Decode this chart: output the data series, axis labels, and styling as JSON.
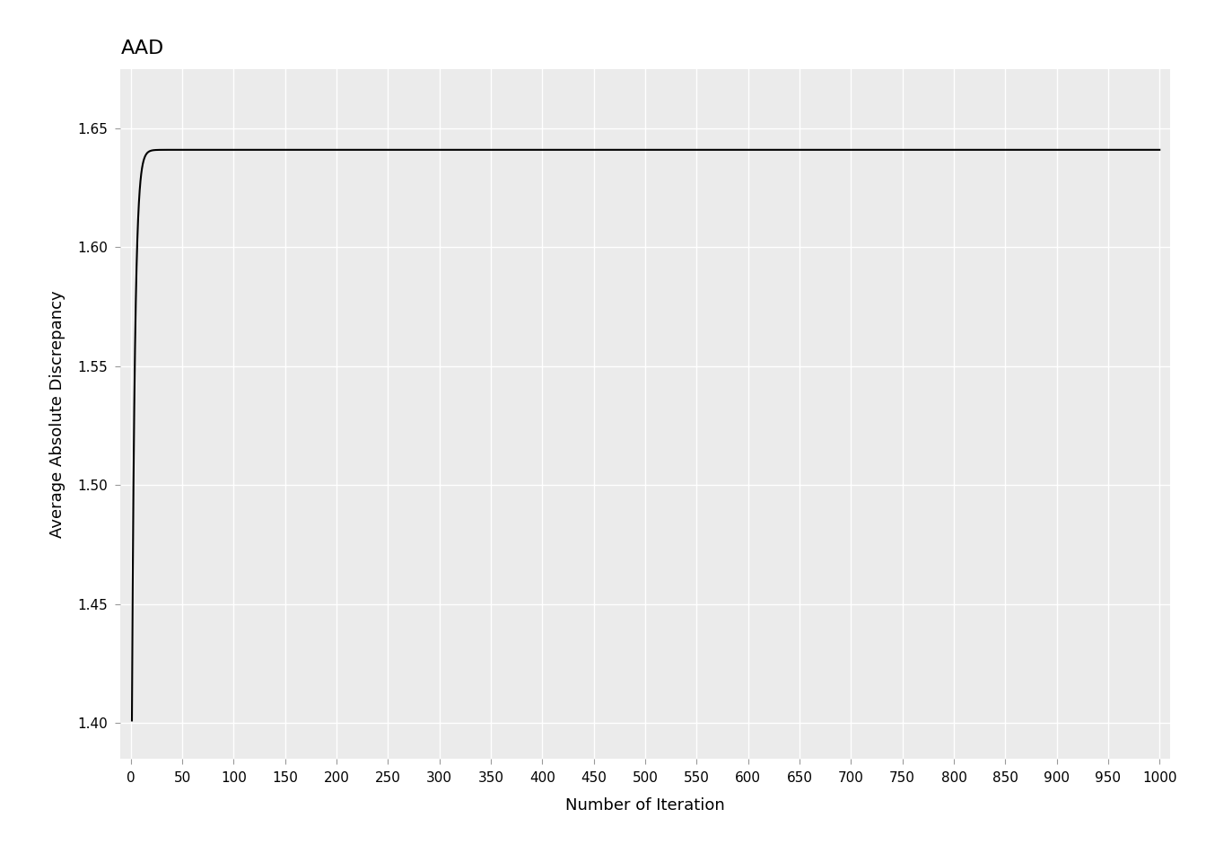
{
  "title": "AAD",
  "xlabel": "Number of Iteration",
  "ylabel": "Average Absolute Discrepancy",
  "xlim": [
    -10,
    1010
  ],
  "ylim": [
    1.385,
    1.675
  ],
  "yticks": [
    1.4,
    1.45,
    1.5,
    1.55,
    1.6,
    1.65
  ],
  "xticks": [
    0,
    50,
    100,
    150,
    200,
    250,
    300,
    350,
    400,
    450,
    500,
    550,
    600,
    650,
    700,
    750,
    800,
    850,
    900,
    950,
    1000
  ],
  "background_color": "#EBEBEB",
  "grid_color": "#FFFFFF",
  "line_color": "#000000",
  "line_width": 1.5,
  "title_fontsize": 16,
  "axis_label_fontsize": 13,
  "tick_fontsize": 11,
  "curve_start_x": 1,
  "curve_start_y": 1.401,
  "curve_asymptote": 1.641,
  "curve_rate": 0.35
}
